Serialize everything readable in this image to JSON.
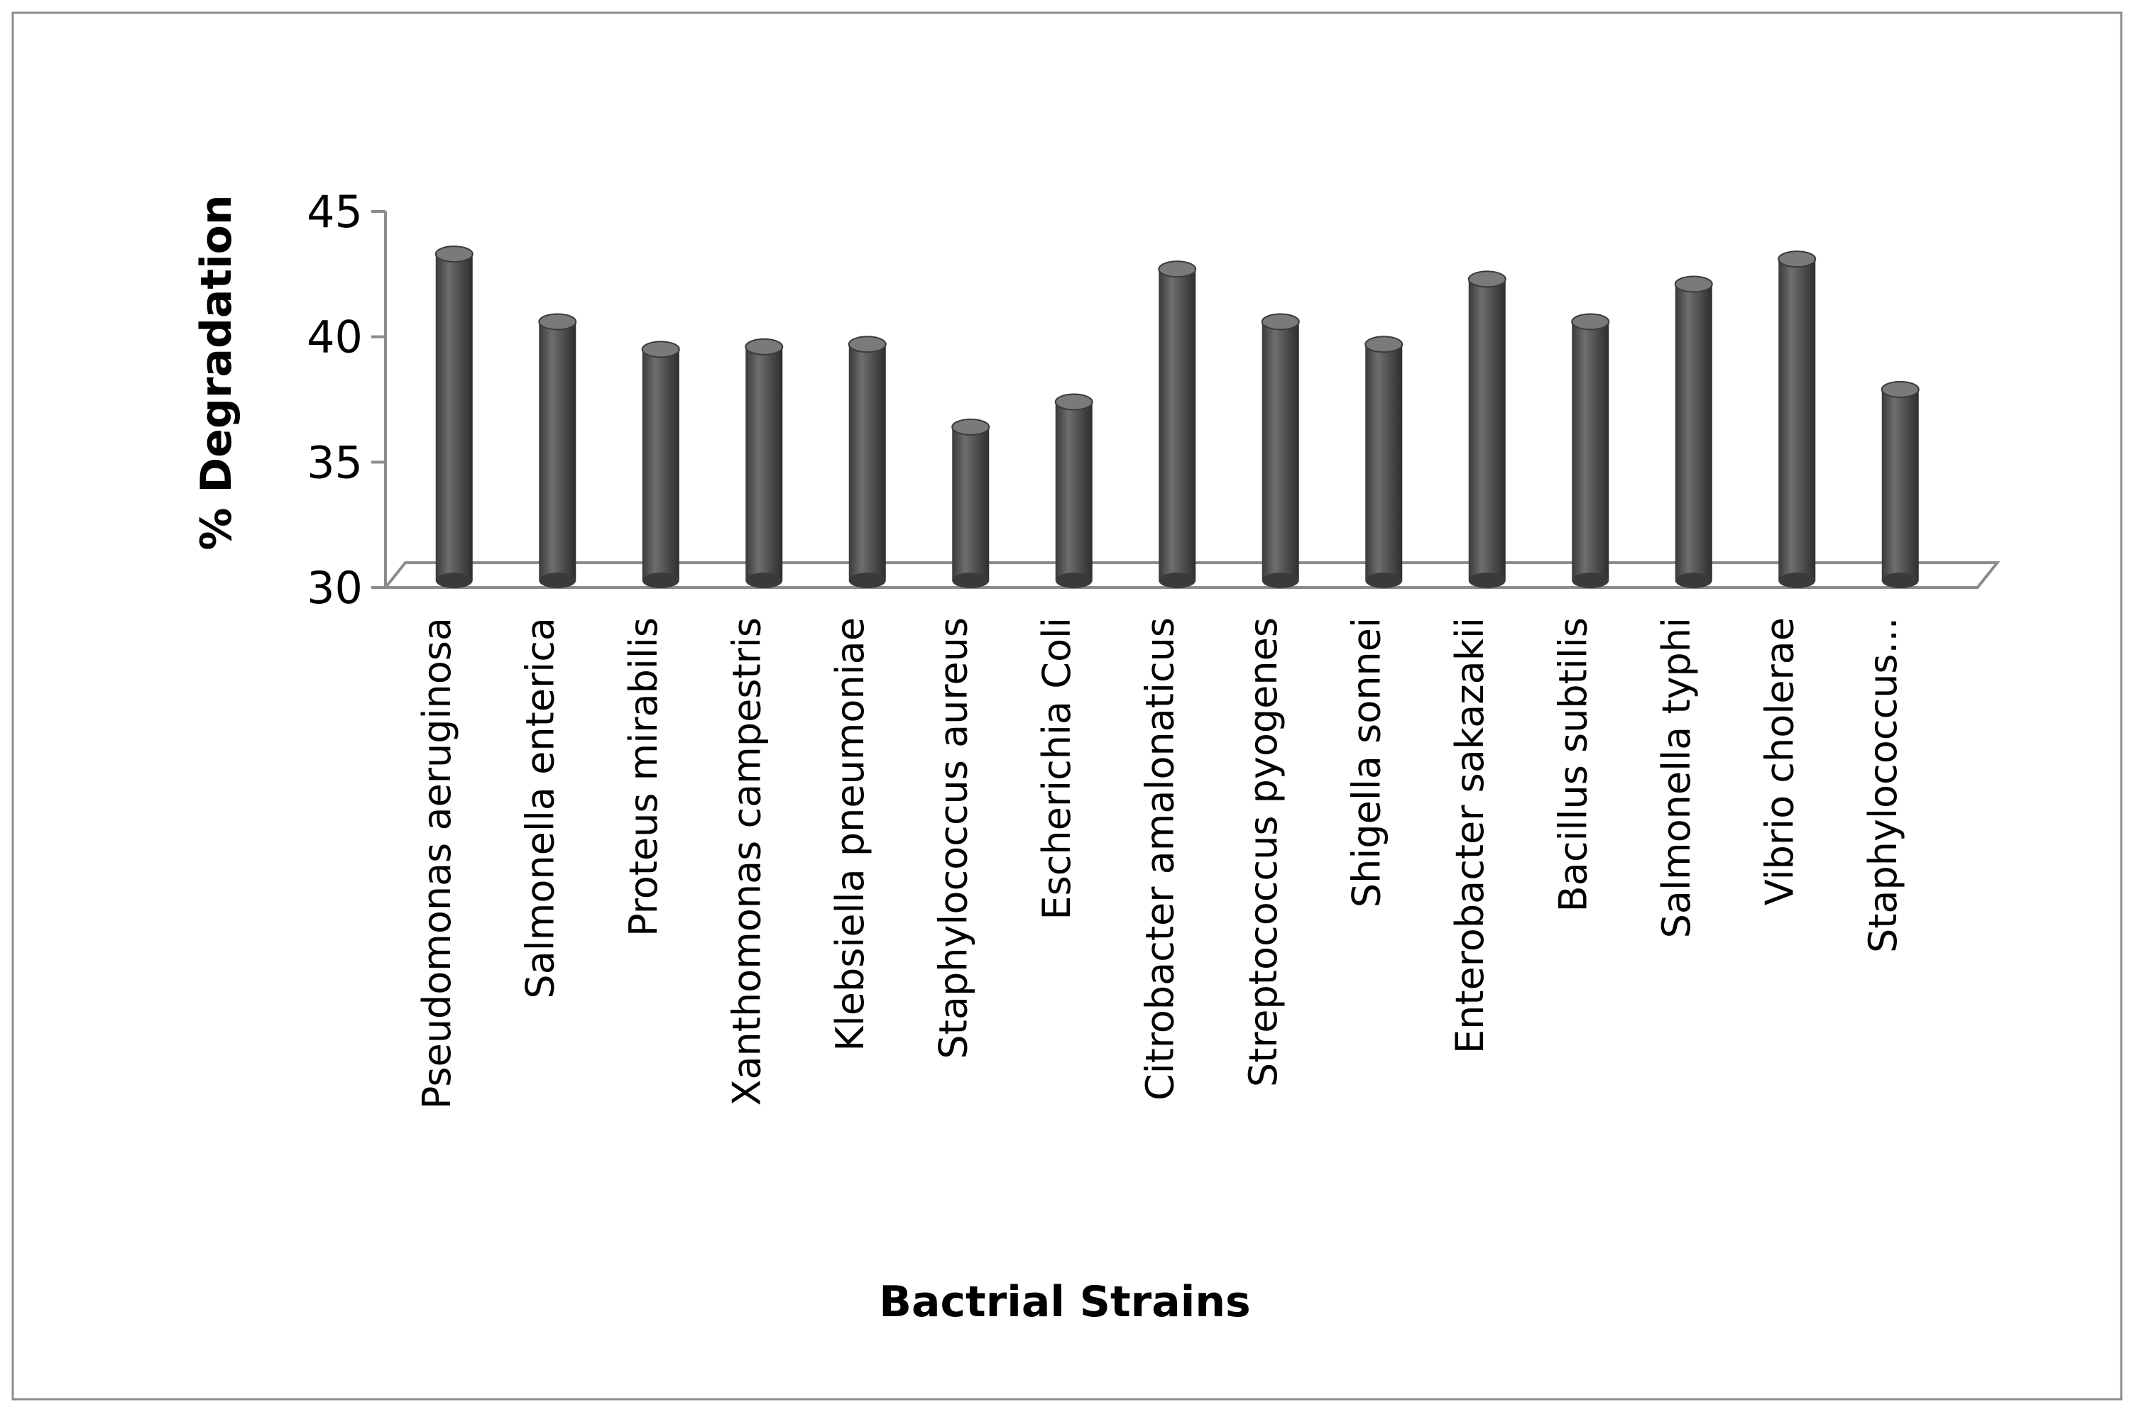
{
  "chart_data": {
    "type": "bar",
    "title": "",
    "xlabel": "Bactrial Strains",
    "ylabel": "% Degradation",
    "ylim": [
      30,
      45
    ],
    "yticks": [
      30,
      35,
      40,
      45
    ],
    "grid": false,
    "legend": "none",
    "bar_color": "#555555",
    "categories": [
      "Pseudomonas aeruginosa",
      "Salmonella enterica",
      "Proteus mirabilis",
      "Xanthomonas campestris",
      "Klebsiella pneumoniae",
      "Staphylococcus aureus",
      "Escherichia Coli",
      "Citrobacter amalonaticus",
      "Streptococcus pyogenes",
      "Shigella sonnei",
      "Enterobacter sakazakii",
      "Bacillus subtilis",
      "Salmonella typhi",
      "Vibrio cholerae",
      "Staphylococcus..."
    ],
    "values": [
      43.3,
      40.6,
      39.5,
      39.6,
      39.7,
      36.4,
      37.4,
      42.7,
      40.6,
      39.7,
      42.3,
      40.6,
      42.1,
      43.1,
      37.9
    ]
  }
}
